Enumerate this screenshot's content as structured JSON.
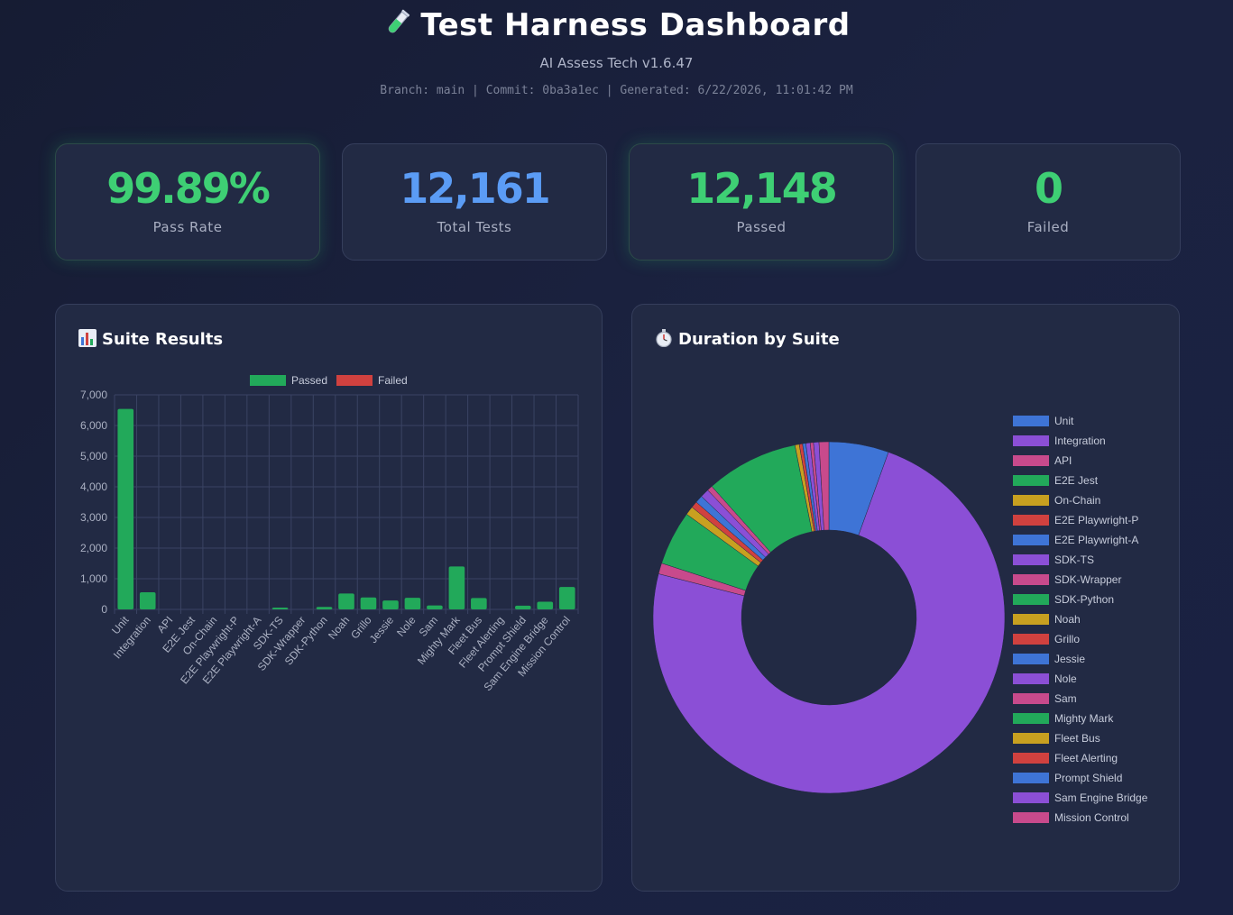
{
  "header": {
    "title": "Test Harness Dashboard",
    "subtitle": "AI Assess Tech v1.6.47",
    "meta": "Branch: main | Commit: 0ba3a1ec | Generated: 6/22/2026, 11:01:42 PM"
  },
  "stats": [
    {
      "value": "99.89%",
      "label": "Pass Rate",
      "color": "#3ecf74"
    },
    {
      "value": "12,161",
      "label": "Total Tests",
      "color": "#5b9cf5"
    },
    {
      "value": "12,148",
      "label": "Passed",
      "color": "#3ecf74"
    },
    {
      "value": "0",
      "label": "Failed",
      "color": "#3ecf74"
    }
  ],
  "panels": {
    "suite_results_title": "Suite Results",
    "duration_title": "Duration by Suite"
  },
  "icons": {
    "title": "test-tube-icon",
    "suite_results": "bar-chart-icon",
    "duration": "stopwatch-icon"
  },
  "chart_data": [
    {
      "type": "bar",
      "categories": [
        "Unit",
        "Integration",
        "API",
        "E2E Jest",
        "On-Chain",
        "E2E Playwright-P",
        "E2E Playwright-A",
        "SDK-TS",
        "SDK-Wrapper",
        "SDK-Python",
        "Noah",
        "Grillo",
        "Jessie",
        "Nole",
        "Sam",
        "Mighty Mark",
        "Fleet Bus",
        "Fleet Alerting",
        "Prompt Shield",
        "Sam Engine Bridge",
        "Mission Control"
      ],
      "series": [
        {
          "name": "Passed",
          "color": "#22a95a",
          "values": [
            6540,
            560,
            0,
            0,
            0,
            0,
            0,
            60,
            0,
            80,
            520,
            390,
            290,
            380,
            130,
            1400,
            370,
            0,
            120,
            250,
            730
          ]
        },
        {
          "name": "Failed",
          "color": "#d0413f",
          "values": [
            0,
            0,
            0,
            0,
            0,
            0,
            0,
            0,
            0,
            0,
            0,
            0,
            0,
            0,
            0,
            0,
            0,
            0,
            0,
            0,
            0
          ]
        }
      ],
      "yticks": [
        "0",
        "1,000",
        "2,000",
        "3,000",
        "4,000",
        "5,000",
        "6,000",
        "7,000"
      ],
      "ylim": [
        0,
        7000
      ],
      "grid": true,
      "legend": "top"
    },
    {
      "type": "pie",
      "donut": true,
      "labels": [
        "Unit",
        "Integration",
        "API",
        "E2E Jest",
        "On-Chain",
        "E2E Playwright-P",
        "E2E Playwright-A",
        "SDK-TS",
        "SDK-Wrapper",
        "SDK-Python",
        "Noah",
        "Grillo",
        "Jessie",
        "Nole",
        "Sam",
        "Mighty Mark",
        "Fleet Bus",
        "Fleet Alerting",
        "Prompt Shield",
        "Sam Engine Bridge",
        "Mission Control"
      ],
      "values": [
        5.5,
        73.5,
        1.0,
        5.0,
        0.8,
        0.6,
        0.7,
        0.8,
        0.5,
        8.5,
        0.4,
        0.3,
        0.3,
        0.4,
        0.3,
        0,
        0,
        0,
        0,
        0.5,
        0.9
      ],
      "colors": [
        "#3e74d6",
        "#8b4fd6",
        "#c84a8c",
        "#22a95a",
        "#c8a020",
        "#d0413f",
        "#3e74d6",
        "#8b4fd6",
        "#c84a8c",
        "#22a95a",
        "#c8a020",
        "#d0413f",
        "#3e74d6",
        "#8b4fd6",
        "#c84a8c",
        "#22a95a",
        "#c8a020",
        "#d0413f",
        "#3e74d6",
        "#8b4fd6",
        "#c84a8c"
      ],
      "legend": "right"
    }
  ]
}
